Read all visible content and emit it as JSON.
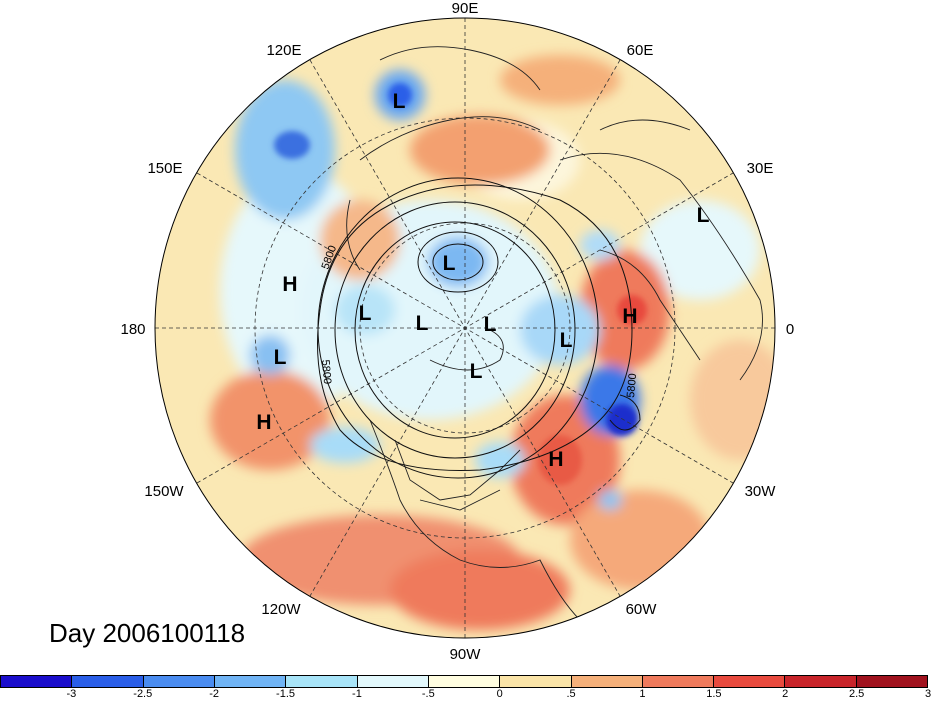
{
  "title": "Day 2006100118",
  "longitude_labels": {
    "top": "90E",
    "top_left": "120E",
    "top_right": "60E",
    "upper_left": "150E",
    "upper_right": "30E",
    "left": "180",
    "right": "0",
    "lower_left": "150W",
    "lower_right": "30W",
    "bottom_left": "120W",
    "bottom_right": "60W",
    "bottom": "90W"
  },
  "contour_label": "5800",
  "pressure_centers": [
    {
      "id": "L1",
      "label": "L",
      "type": "low"
    },
    {
      "id": "L2",
      "label": "L",
      "type": "low"
    },
    {
      "id": "L3",
      "label": "L",
      "type": "low"
    },
    {
      "id": "L4",
      "label": "L",
      "type": "low"
    },
    {
      "id": "L5",
      "label": "L",
      "type": "low"
    },
    {
      "id": "L6",
      "label": "L",
      "type": "low"
    },
    {
      "id": "L7",
      "label": "L",
      "type": "low"
    },
    {
      "id": "L8",
      "label": "L",
      "type": "low"
    },
    {
      "id": "L9",
      "label": "L",
      "type": "low"
    },
    {
      "id": "H1",
      "label": "H",
      "type": "high"
    },
    {
      "id": "H2",
      "label": "H",
      "type": "high"
    },
    {
      "id": "H3",
      "label": "H",
      "type": "high"
    },
    {
      "id": "H4",
      "label": "H",
      "type": "high"
    }
  ],
  "colorbar": {
    "colors": [
      "#1a0dcc",
      "#2a5ee8",
      "#4a8cf0",
      "#70b4f5",
      "#a8e4f8",
      "#e2f8fc",
      "#fffde0",
      "#fae4a8",
      "#f5b07a",
      "#ef7a5c",
      "#e84a3e",
      "#c8242a",
      "#a0121e"
    ],
    "tick_labels": [
      "-3",
      "-2.5",
      "-2",
      "-1.5",
      "-1",
      "-.5",
      "0",
      ".5",
      "1",
      "1.5",
      "2",
      "2.5",
      "3"
    ]
  },
  "chart_data": {
    "type": "heatmap",
    "title": "Day 2006100118",
    "projection": "north polar stereographic",
    "scale_min": -3,
    "scale_max": 3,
    "scale_step": 0.5,
    "contour_value": 5800
  }
}
